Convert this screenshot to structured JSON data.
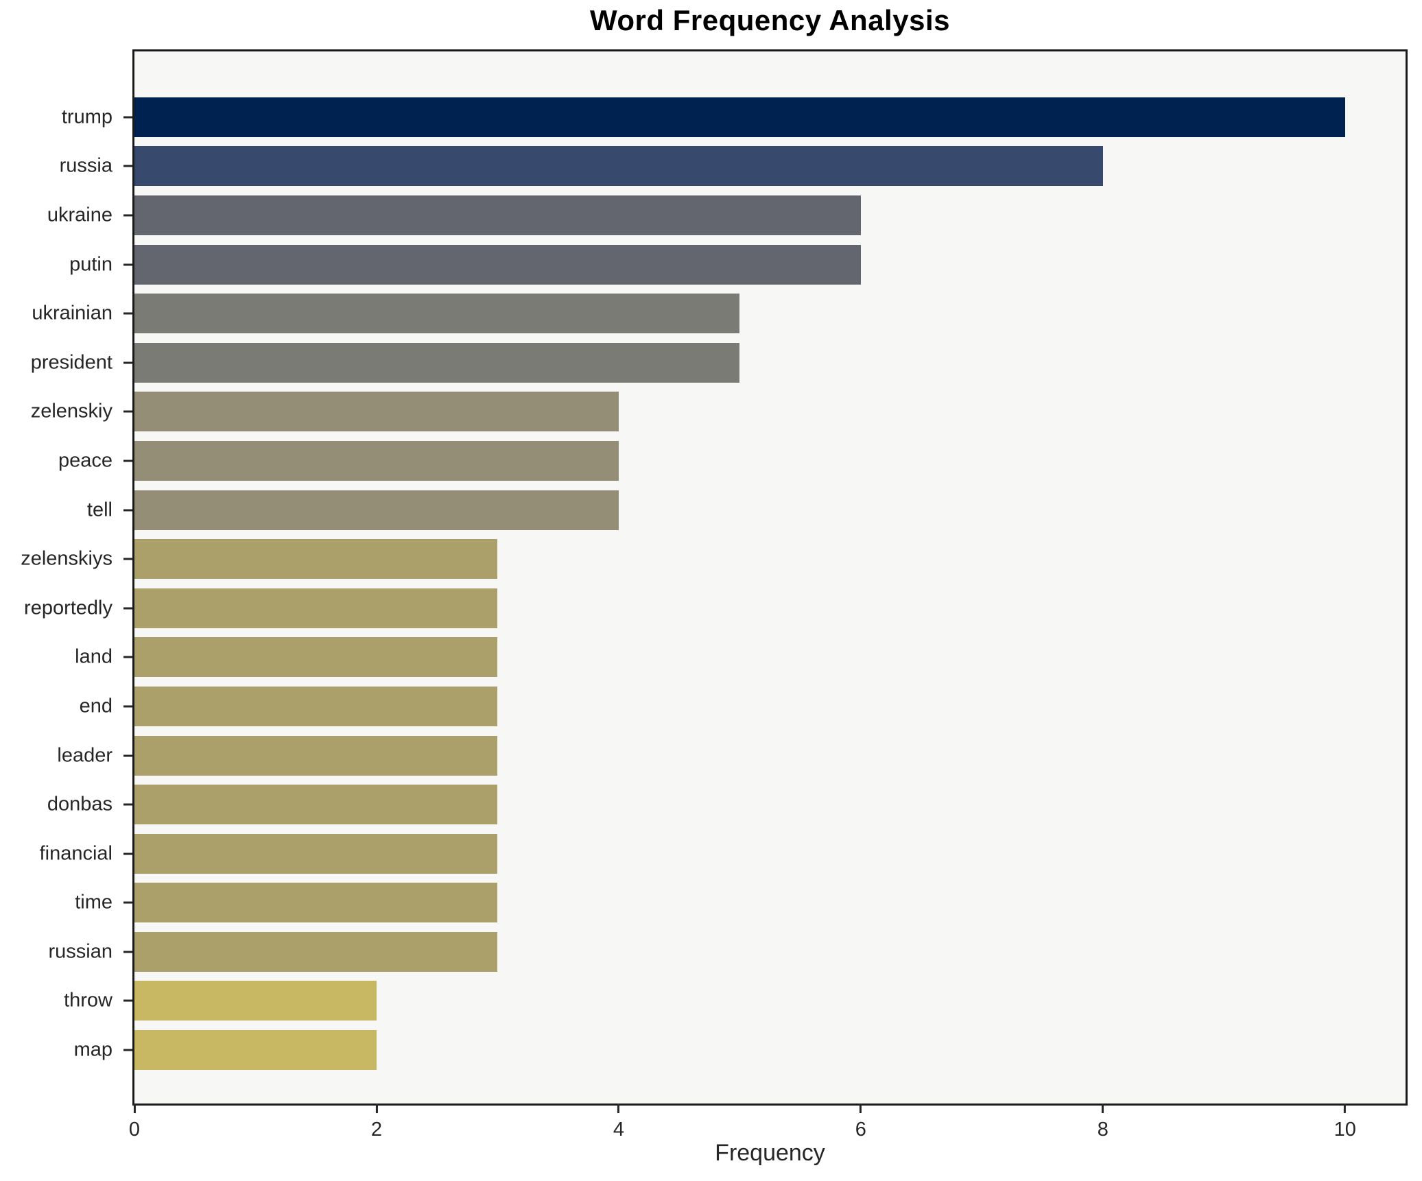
{
  "title": "Word Frequency Analysis",
  "xlabel": "Frequency",
  "chart_data": {
    "type": "bar",
    "orientation": "horizontal",
    "title": "Word Frequency Analysis",
    "xlabel": "Frequency",
    "ylabel": "",
    "xlim": [
      0,
      10.5
    ],
    "xticks": [
      0,
      2,
      4,
      6,
      8,
      10
    ],
    "grid": false,
    "legend": "none",
    "plot_background": "#f7f7f5",
    "figure_background": "#ffffff",
    "spine_color": "#1a1a1a",
    "tick_color": "#262626",
    "categories": [
      "trump",
      "russia",
      "ukraine",
      "putin",
      "ukrainian",
      "president",
      "zelenskiy",
      "peace",
      "tell",
      "zelenskiys",
      "reportedly",
      "land",
      "end",
      "leader",
      "donbas",
      "financial",
      "time",
      "russian",
      "throw",
      "map"
    ],
    "values": [
      10,
      8,
      6,
      6,
      5,
      5,
      4,
      4,
      4,
      3,
      3,
      3,
      3,
      3,
      3,
      3,
      3,
      3,
      2,
      2
    ],
    "bar_colors": [
      "#002250",
      "#374a6e",
      "#64666f",
      "#64666f",
      "#7b7b75",
      "#7b7b75",
      "#948e76",
      "#948e76",
      "#948e76",
      "#ab9f6a",
      "#ab9f6a",
      "#ab9f6a",
      "#ab9f6a",
      "#ab9f6a",
      "#ab9f6a",
      "#ab9f6a",
      "#ab9f6a",
      "#ab9f6a",
      "#c9b863",
      "#c9b863"
    ]
  }
}
